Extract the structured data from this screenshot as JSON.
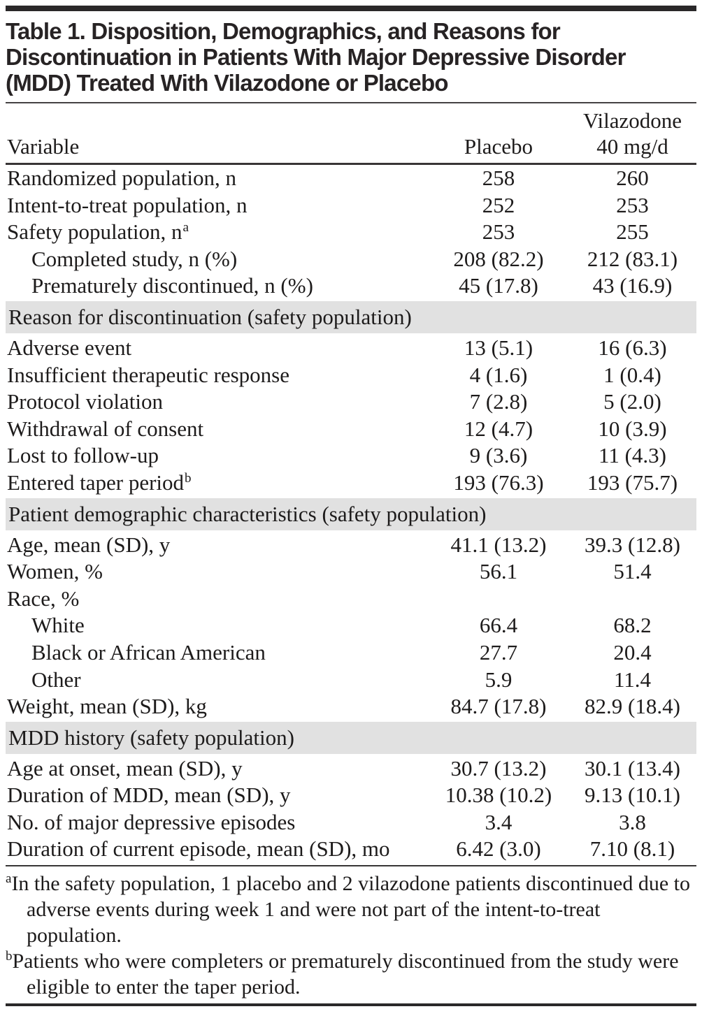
{
  "table": {
    "title": "Table 1. Disposition, Demographics, and Reasons for Discontinuation in Patients With Major Depressive Disorder (MDD) Treated With Vilazodone or Placebo",
    "header": {
      "variable": "Variable",
      "placebo": "Placebo",
      "vilazodone_line1": "Vilazodone",
      "vilazodone_line2": "40 mg/d"
    },
    "sections": [
      {
        "label": "Reason for discontinuation (safety population)"
      },
      {
        "label": "Patient demographic characteristics (safety population)"
      },
      {
        "label": "MDD history (safety population)"
      }
    ],
    "rows": [
      {
        "label": "Randomized population, n",
        "placebo": "258",
        "vilazodone": "260"
      },
      {
        "label": "Intent-to-treat population, n",
        "placebo": "252",
        "vilazodone": "253"
      },
      {
        "label": "Safety population, n",
        "sup": "a",
        "placebo": "253",
        "vilazodone": "255"
      },
      {
        "label": "Completed study, n (%)",
        "placebo": "208 (82.2)",
        "vilazodone": "212 (83.1)"
      },
      {
        "label": "Prematurely discontinued, n (%)",
        "placebo": "45 (17.8)",
        "vilazodone": "43 (16.9)"
      },
      {
        "label": "Adverse event",
        "placebo": "13 (5.1)",
        "vilazodone": "16 (6.3)"
      },
      {
        "label": "Insufficient therapeutic response",
        "placebo": "4 (1.6)",
        "vilazodone": "1 (0.4)"
      },
      {
        "label": "Protocol violation",
        "placebo": "7 (2.8)",
        "vilazodone": "5 (2.0)"
      },
      {
        "label": "Withdrawal of consent",
        "placebo": "12 (4.7)",
        "vilazodone": "10 (3.9)"
      },
      {
        "label": "Lost to follow-up",
        "placebo": "9 (3.6)",
        "vilazodone": "11 (4.3)"
      },
      {
        "label": "Entered taper period",
        "sup": "b",
        "placebo": "193 (76.3)",
        "vilazodone": "193 (75.7)"
      },
      {
        "label": "Age, mean (SD), y",
        "placebo": "41.1 (13.2)",
        "vilazodone": "39.3 (12.8)"
      },
      {
        "label": "Women, %",
        "placebo": "56.1",
        "vilazodone": "51.4"
      },
      {
        "label": "Race, %",
        "placebo": "",
        "vilazodone": ""
      },
      {
        "label": "White",
        "placebo": "66.4",
        "vilazodone": "68.2"
      },
      {
        "label": "Black or African American",
        "placebo": "27.7",
        "vilazodone": "20.4"
      },
      {
        "label": "Other",
        "placebo": "5.9",
        "vilazodone": "11.4"
      },
      {
        "label": "Weight, mean (SD), kg",
        "placebo": "84.7 (17.8)",
        "vilazodone": "82.9 (18.4)"
      },
      {
        "label": "Age at onset, mean (SD), y",
        "placebo": "30.7 (13.2)",
        "vilazodone": "30.1 (13.4)"
      },
      {
        "label": "Duration of MDD, mean (SD), y",
        "placebo": "10.38 (10.2)",
        "vilazodone": "9.13 (10.1)"
      },
      {
        "label": "No. of major depressive episodes",
        "placebo": "3.4",
        "vilazodone": "3.8"
      },
      {
        "label": "Duration of current episode, mean (SD), mo",
        "placebo": "6.42 (3.0)",
        "vilazodone": "7.10 (8.1)"
      }
    ],
    "footnotes": [
      {
        "marker": "a",
        "text": "In the safety population, 1 placebo and 2 vilazodone patients discontinued due to adverse events during week 1 and were not part of the intent-to-treat population."
      },
      {
        "marker": "b",
        "text": "Patients who were completers or prematurely discontinued from the study were eligible to enter the taper period."
      }
    ],
    "colors": {
      "section_band": "#e1e1e1",
      "rule_dark": "#2a2829",
      "text": "#1d1b1b"
    }
  }
}
